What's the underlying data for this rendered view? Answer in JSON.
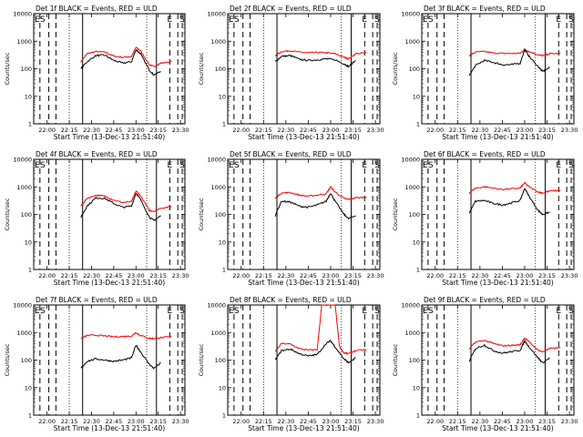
{
  "chart_data": {
    "type": "line",
    "y_scale": "log",
    "ylim": [
      1,
      10000
    ],
    "xlim_minutes": [
      21.85,
      23.55
    ],
    "x_ticks": [
      "22:00",
      "22:15",
      "22:30",
      "22:45",
      "23:00",
      "23:15",
      "23:30"
    ],
    "y_ticks": [
      "1",
      "10",
      "100",
      "1000",
      "10000"
    ],
    "xlabel": "Start Time (13-Dec-13 21:51:40)",
    "ylabel": "Counts/sec",
    "series_colors": {
      "events": "#000000",
      "uld": "#ff0000"
    },
    "markers": {
      "solid_times": [
        22.4,
        23.23
      ],
      "dashed_times": [
        21.92,
        22.02,
        22.1,
        23.38,
        23.47,
        23.52
      ],
      "dotted_times": [
        22.25,
        23.12
      ],
      "labels": [
        "E",
        "S"
      ]
    },
    "panels": [
      {
        "title": "Det 1f BLACK = Events, RED = ULD",
        "events": [
          [
            22.38,
            100
          ],
          [
            22.45,
            180
          ],
          [
            22.55,
            300
          ],
          [
            22.65,
            310
          ],
          [
            22.75,
            200
          ],
          [
            22.85,
            160
          ],
          [
            22.95,
            180
          ],
          [
            23.0,
            500
          ],
          [
            23.05,
            350
          ],
          [
            23.15,
            90
          ],
          [
            23.2,
            60
          ],
          [
            23.28,
            80
          ]
        ],
        "uld": [
          [
            22.38,
            180
          ],
          [
            22.45,
            350
          ],
          [
            22.55,
            420
          ],
          [
            22.65,
            400
          ],
          [
            22.75,
            290
          ],
          [
            22.85,
            260
          ],
          [
            22.95,
            280
          ],
          [
            23.0,
            600
          ],
          [
            23.05,
            450
          ],
          [
            23.15,
            140
          ],
          [
            23.2,
            120
          ],
          [
            23.28,
            160
          ],
          [
            23.4,
            180
          ]
        ]
      },
      {
        "title": "Det 2f BLACK = Events, RED = ULD",
        "events": [
          [
            22.38,
            180
          ],
          [
            22.45,
            280
          ],
          [
            22.55,
            300
          ],
          [
            22.65,
            220
          ],
          [
            22.75,
            200
          ],
          [
            22.85,
            210
          ],
          [
            22.95,
            230
          ],
          [
            23.05,
            210
          ],
          [
            23.15,
            150
          ],
          [
            23.2,
            120
          ],
          [
            23.28,
            200
          ]
        ],
        "uld": [
          [
            22.38,
            300
          ],
          [
            22.45,
            420
          ],
          [
            22.55,
            450
          ],
          [
            22.65,
            400
          ],
          [
            22.75,
            380
          ],
          [
            22.85,
            390
          ],
          [
            22.95,
            380
          ],
          [
            23.05,
            350
          ],
          [
            23.15,
            260
          ],
          [
            23.2,
            230
          ],
          [
            23.28,
            350
          ],
          [
            23.4,
            380
          ]
        ]
      },
      {
        "title": "Det 3f BLACK = Events, RED = ULD",
        "events": [
          [
            22.38,
            55
          ],
          [
            22.45,
            130
          ],
          [
            22.55,
            200
          ],
          [
            22.65,
            170
          ],
          [
            22.75,
            140
          ],
          [
            22.85,
            140
          ],
          [
            22.95,
            160
          ],
          [
            23.0,
            500
          ],
          [
            23.05,
            280
          ],
          [
            23.15,
            120
          ],
          [
            23.2,
            80
          ],
          [
            23.28,
            110
          ]
        ],
        "uld": [
          [
            22.38,
            300
          ],
          [
            22.45,
            400
          ],
          [
            22.55,
            420
          ],
          [
            22.65,
            370
          ],
          [
            22.75,
            360
          ],
          [
            22.85,
            360
          ],
          [
            22.95,
            360
          ],
          [
            23.0,
            500
          ],
          [
            23.05,
            420
          ],
          [
            23.15,
            320
          ],
          [
            23.2,
            300
          ],
          [
            23.28,
            350
          ],
          [
            23.4,
            360
          ]
        ]
      },
      {
        "title": "Det 4f BLACK = Events, RED = ULD",
        "events": [
          [
            22.38,
            80
          ],
          [
            22.45,
            200
          ],
          [
            22.55,
            400
          ],
          [
            22.65,
            380
          ],
          [
            22.75,
            250
          ],
          [
            22.85,
            180
          ],
          [
            22.95,
            200
          ],
          [
            23.0,
            600
          ],
          [
            23.05,
            350
          ],
          [
            23.15,
            80
          ],
          [
            23.2,
            60
          ],
          [
            23.28,
            90
          ]
        ],
        "uld": [
          [
            22.38,
            200
          ],
          [
            22.45,
            380
          ],
          [
            22.55,
            500
          ],
          [
            22.65,
            460
          ],
          [
            22.75,
            330
          ],
          [
            22.85,
            270
          ],
          [
            22.95,
            290
          ],
          [
            23.0,
            700
          ],
          [
            23.05,
            480
          ],
          [
            23.15,
            140
          ],
          [
            23.2,
            130
          ],
          [
            23.28,
            170
          ],
          [
            23.4,
            190
          ]
        ]
      },
      {
        "title": "Det 5f BLACK = Events, RED = ULD",
        "events": [
          [
            22.38,
            90
          ],
          [
            22.45,
            300
          ],
          [
            22.55,
            280
          ],
          [
            22.65,
            200
          ],
          [
            22.75,
            180
          ],
          [
            22.85,
            220
          ],
          [
            22.95,
            300
          ],
          [
            23.0,
            600
          ],
          [
            23.05,
            300
          ],
          [
            23.15,
            100
          ],
          [
            23.2,
            70
          ],
          [
            23.28,
            90
          ]
        ],
        "uld": [
          [
            22.38,
            380
          ],
          [
            22.45,
            600
          ],
          [
            22.55,
            620
          ],
          [
            22.65,
            500
          ],
          [
            22.75,
            460
          ],
          [
            22.85,
            500
          ],
          [
            22.95,
            560
          ],
          [
            23.0,
            1000
          ],
          [
            23.05,
            650
          ],
          [
            23.15,
            380
          ],
          [
            23.2,
            350
          ],
          [
            23.28,
            400
          ],
          [
            23.4,
            420
          ]
        ]
      },
      {
        "title": "Det 6f BLACK = Events, RED = ULD",
        "events": [
          [
            22.38,
            110
          ],
          [
            22.45,
            300
          ],
          [
            22.55,
            320
          ],
          [
            22.65,
            250
          ],
          [
            22.75,
            220
          ],
          [
            22.85,
            260
          ],
          [
            22.95,
            320
          ],
          [
            23.0,
            900
          ],
          [
            23.05,
            450
          ],
          [
            23.15,
            140
          ],
          [
            23.2,
            100
          ],
          [
            23.28,
            120
          ]
        ],
        "uld": [
          [
            22.38,
            600
          ],
          [
            22.45,
            900
          ],
          [
            22.55,
            1000
          ],
          [
            22.65,
            900
          ],
          [
            22.75,
            800
          ],
          [
            22.85,
            850
          ],
          [
            22.95,
            900
          ],
          [
            23.0,
            1400
          ],
          [
            23.05,
            1000
          ],
          [
            23.15,
            650
          ],
          [
            23.2,
            600
          ],
          [
            23.28,
            700
          ],
          [
            23.4,
            750
          ]
        ]
      },
      {
        "title": "Det 7f BLACK = Events, RED = ULD",
        "events": [
          [
            22.38,
            50
          ],
          [
            22.45,
            90
          ],
          [
            22.55,
            110
          ],
          [
            22.65,
            100
          ],
          [
            22.75,
            90
          ],
          [
            22.85,
            100
          ],
          [
            22.95,
            120
          ],
          [
            23.0,
            350
          ],
          [
            23.05,
            200
          ],
          [
            23.15,
            70
          ],
          [
            23.2,
            50
          ],
          [
            23.28,
            80
          ]
        ],
        "uld": [
          [
            22.38,
            600
          ],
          [
            22.45,
            780
          ],
          [
            22.55,
            800
          ],
          [
            22.65,
            750
          ],
          [
            22.75,
            700
          ],
          [
            22.85,
            720
          ],
          [
            22.95,
            740
          ],
          [
            23.0,
            1000
          ],
          [
            23.05,
            780
          ],
          [
            23.15,
            620
          ],
          [
            23.2,
            600
          ],
          [
            23.28,
            650
          ],
          [
            23.4,
            700
          ]
        ]
      },
      {
        "title": "Det 8f BLACK = Events, RED = ULD",
        "events": [
          [
            22.38,
            100
          ],
          [
            22.45,
            220
          ],
          [
            22.55,
            250
          ],
          [
            22.65,
            170
          ],
          [
            22.75,
            140
          ],
          [
            22.85,
            160
          ],
          [
            22.95,
            400
          ],
          [
            23.0,
            500
          ],
          [
            23.05,
            300
          ],
          [
            23.15,
            110
          ],
          [
            23.2,
            80
          ],
          [
            23.28,
            120
          ]
        ],
        "uld": [
          [
            22.38,
            200
          ],
          [
            22.45,
            400
          ],
          [
            22.55,
            380
          ],
          [
            22.65,
            260
          ],
          [
            22.75,
            230
          ],
          [
            22.85,
            240
          ],
          [
            22.9,
            10000
          ],
          [
            22.95,
            10000
          ],
          [
            23.0,
            10000
          ],
          [
            23.05,
            10000
          ],
          [
            23.1,
            300
          ],
          [
            23.15,
            180
          ],
          [
            23.2,
            170
          ],
          [
            23.28,
            220
          ],
          [
            23.4,
            240
          ]
        ]
      },
      {
        "title": "Det 9f BLACK = Events, RED = ULD",
        "events": [
          [
            22.38,
            90
          ],
          [
            22.45,
            260
          ],
          [
            22.55,
            350
          ],
          [
            22.65,
            220
          ],
          [
            22.75,
            180
          ],
          [
            22.85,
            200
          ],
          [
            22.95,
            230
          ],
          [
            23.0,
            500
          ],
          [
            23.05,
            300
          ],
          [
            23.15,
            120
          ],
          [
            23.2,
            80
          ],
          [
            23.28,
            120
          ]
        ],
        "uld": [
          [
            22.38,
            250
          ],
          [
            22.45,
            450
          ],
          [
            22.55,
            520
          ],
          [
            22.65,
            400
          ],
          [
            22.75,
            330
          ],
          [
            22.85,
            340
          ],
          [
            22.95,
            360
          ],
          [
            23.0,
            650
          ],
          [
            23.05,
            450
          ],
          [
            23.15,
            230
          ],
          [
            23.2,
            200
          ],
          [
            23.28,
            260
          ],
          [
            23.4,
            280
          ]
        ]
      }
    ]
  }
}
